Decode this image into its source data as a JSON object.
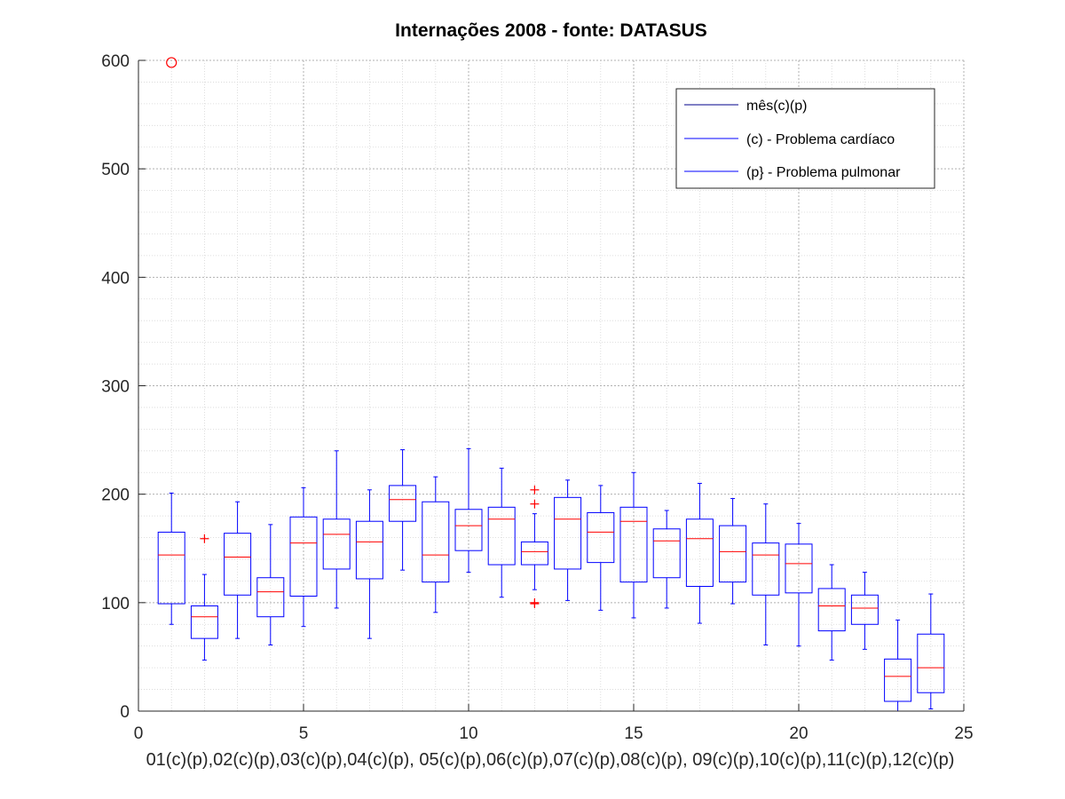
{
  "chart_data": {
    "type": "box",
    "title": "Internações 2008 - fonte: DATASUS",
    "xlabel": "01(c)(p),02(c)(p),03(c)(p),04(c)(p), 05(c)(p),06(c)(p),07(c)(p),08(c)(p), 09(c)(p),10(c)(p),11(c)(p),12(c)(p)",
    "ylabel": "",
    "xlim": [
      0,
      25
    ],
    "ylim": [
      0,
      600
    ],
    "xticks": [
      0,
      5,
      10,
      15,
      20,
      25
    ],
    "yticks": [
      0,
      100,
      200,
      300,
      400,
      500,
      600
    ],
    "grid": true,
    "minor_grid": true,
    "legend": {
      "placement": "top-right",
      "entries": [
        "mês(c)(p)",
        "(c) - Problema cardíaco",
        "(p} - Problema pulmonar"
      ]
    },
    "colors": {
      "box": "#0000ff",
      "median": "#ff0000",
      "outlier": "#ff0000",
      "legend_line": "#00008b"
    },
    "boxes": [
      {
        "x": 1,
        "whisker_low": 80,
        "q1": 99,
        "median": 144,
        "q3": 165,
        "whisker_high": 201,
        "outliers": [],
        "circle_outliers": [
          598
        ]
      },
      {
        "x": 2,
        "whisker_low": 47,
        "q1": 67,
        "median": 87,
        "q3": 97,
        "whisker_high": 126,
        "outliers": [
          159
        ],
        "circle_outliers": []
      },
      {
        "x": 3,
        "whisker_low": 67,
        "q1": 107,
        "median": 142,
        "q3": 164,
        "whisker_high": 193,
        "outliers": [],
        "circle_outliers": []
      },
      {
        "x": 4,
        "whisker_low": 61,
        "q1": 87,
        "median": 110,
        "q3": 123,
        "whisker_high": 172,
        "outliers": [],
        "circle_outliers": []
      },
      {
        "x": 5,
        "whisker_low": 78,
        "q1": 106,
        "median": 155,
        "q3": 179,
        "whisker_high": 206,
        "outliers": [],
        "circle_outliers": []
      },
      {
        "x": 6,
        "whisker_low": 95,
        "q1": 131,
        "median": 163,
        "q3": 177,
        "whisker_high": 240,
        "outliers": [],
        "circle_outliers": []
      },
      {
        "x": 7,
        "whisker_low": 67,
        "q1": 122,
        "median": 156,
        "q3": 175,
        "whisker_high": 204,
        "outliers": [],
        "circle_outliers": []
      },
      {
        "x": 8,
        "whisker_low": 130,
        "q1": 175,
        "median": 195,
        "q3": 208,
        "whisker_high": 241,
        "outliers": [],
        "circle_outliers": []
      },
      {
        "x": 9,
        "whisker_low": 91,
        "q1": 119,
        "median": 144,
        "q3": 193,
        "whisker_high": 216,
        "outliers": [],
        "circle_outliers": []
      },
      {
        "x": 10,
        "whisker_low": 128,
        "q1": 148,
        "median": 171,
        "q3": 186,
        "whisker_high": 242,
        "outliers": [],
        "circle_outliers": []
      },
      {
        "x": 11,
        "whisker_low": 105,
        "q1": 135,
        "median": 177,
        "q3": 188,
        "whisker_high": 224,
        "outliers": [],
        "circle_outliers": []
      },
      {
        "x": 12,
        "whisker_low": 112,
        "q1": 135,
        "median": 147,
        "q3": 156,
        "whisker_high": 182,
        "outliers": [
          204,
          191,
          100,
          99
        ],
        "circle_outliers": []
      },
      {
        "x": 13,
        "whisker_low": 102,
        "q1": 131,
        "median": 177,
        "q3": 197,
        "whisker_high": 213,
        "outliers": [],
        "circle_outliers": []
      },
      {
        "x": 14,
        "whisker_low": 93,
        "q1": 137,
        "median": 165,
        "q3": 183,
        "whisker_high": 208,
        "outliers": [],
        "circle_outliers": []
      },
      {
        "x": 15,
        "whisker_low": 86,
        "q1": 119,
        "median": 175,
        "q3": 188,
        "whisker_high": 220,
        "outliers": [],
        "circle_outliers": []
      },
      {
        "x": 16,
        "whisker_low": 95,
        "q1": 123,
        "median": 157,
        "q3": 168,
        "whisker_high": 185,
        "outliers": [],
        "circle_outliers": []
      },
      {
        "x": 17,
        "whisker_low": 81,
        "q1": 115,
        "median": 159,
        "q3": 177,
        "whisker_high": 210,
        "outliers": [],
        "circle_outliers": []
      },
      {
        "x": 18,
        "whisker_low": 99,
        "q1": 119,
        "median": 147,
        "q3": 171,
        "whisker_high": 196,
        "outliers": [],
        "circle_outliers": []
      },
      {
        "x": 19,
        "whisker_low": 61,
        "q1": 107,
        "median": 144,
        "q3": 155,
        "whisker_high": 191,
        "outliers": [],
        "circle_outliers": []
      },
      {
        "x": 20,
        "whisker_low": 60,
        "q1": 109,
        "median": 136,
        "q3": 154,
        "whisker_high": 173,
        "outliers": [],
        "circle_outliers": []
      },
      {
        "x": 21,
        "whisker_low": 47,
        "q1": 74,
        "median": 97,
        "q3": 113,
        "whisker_high": 135,
        "outliers": [],
        "circle_outliers": []
      },
      {
        "x": 22,
        "whisker_low": 57,
        "q1": 80,
        "median": 95,
        "q3": 107,
        "whisker_high": 128,
        "outliers": [],
        "circle_outliers": []
      },
      {
        "x": 23,
        "whisker_low": 0,
        "q1": 9,
        "median": 32,
        "q3": 48,
        "whisker_high": 84,
        "outliers": [],
        "circle_outliers": []
      },
      {
        "x": 24,
        "whisker_low": 2,
        "q1": 17,
        "median": 40,
        "q3": 71,
        "whisker_high": 108,
        "outliers": [],
        "circle_outliers": []
      }
    ]
  }
}
